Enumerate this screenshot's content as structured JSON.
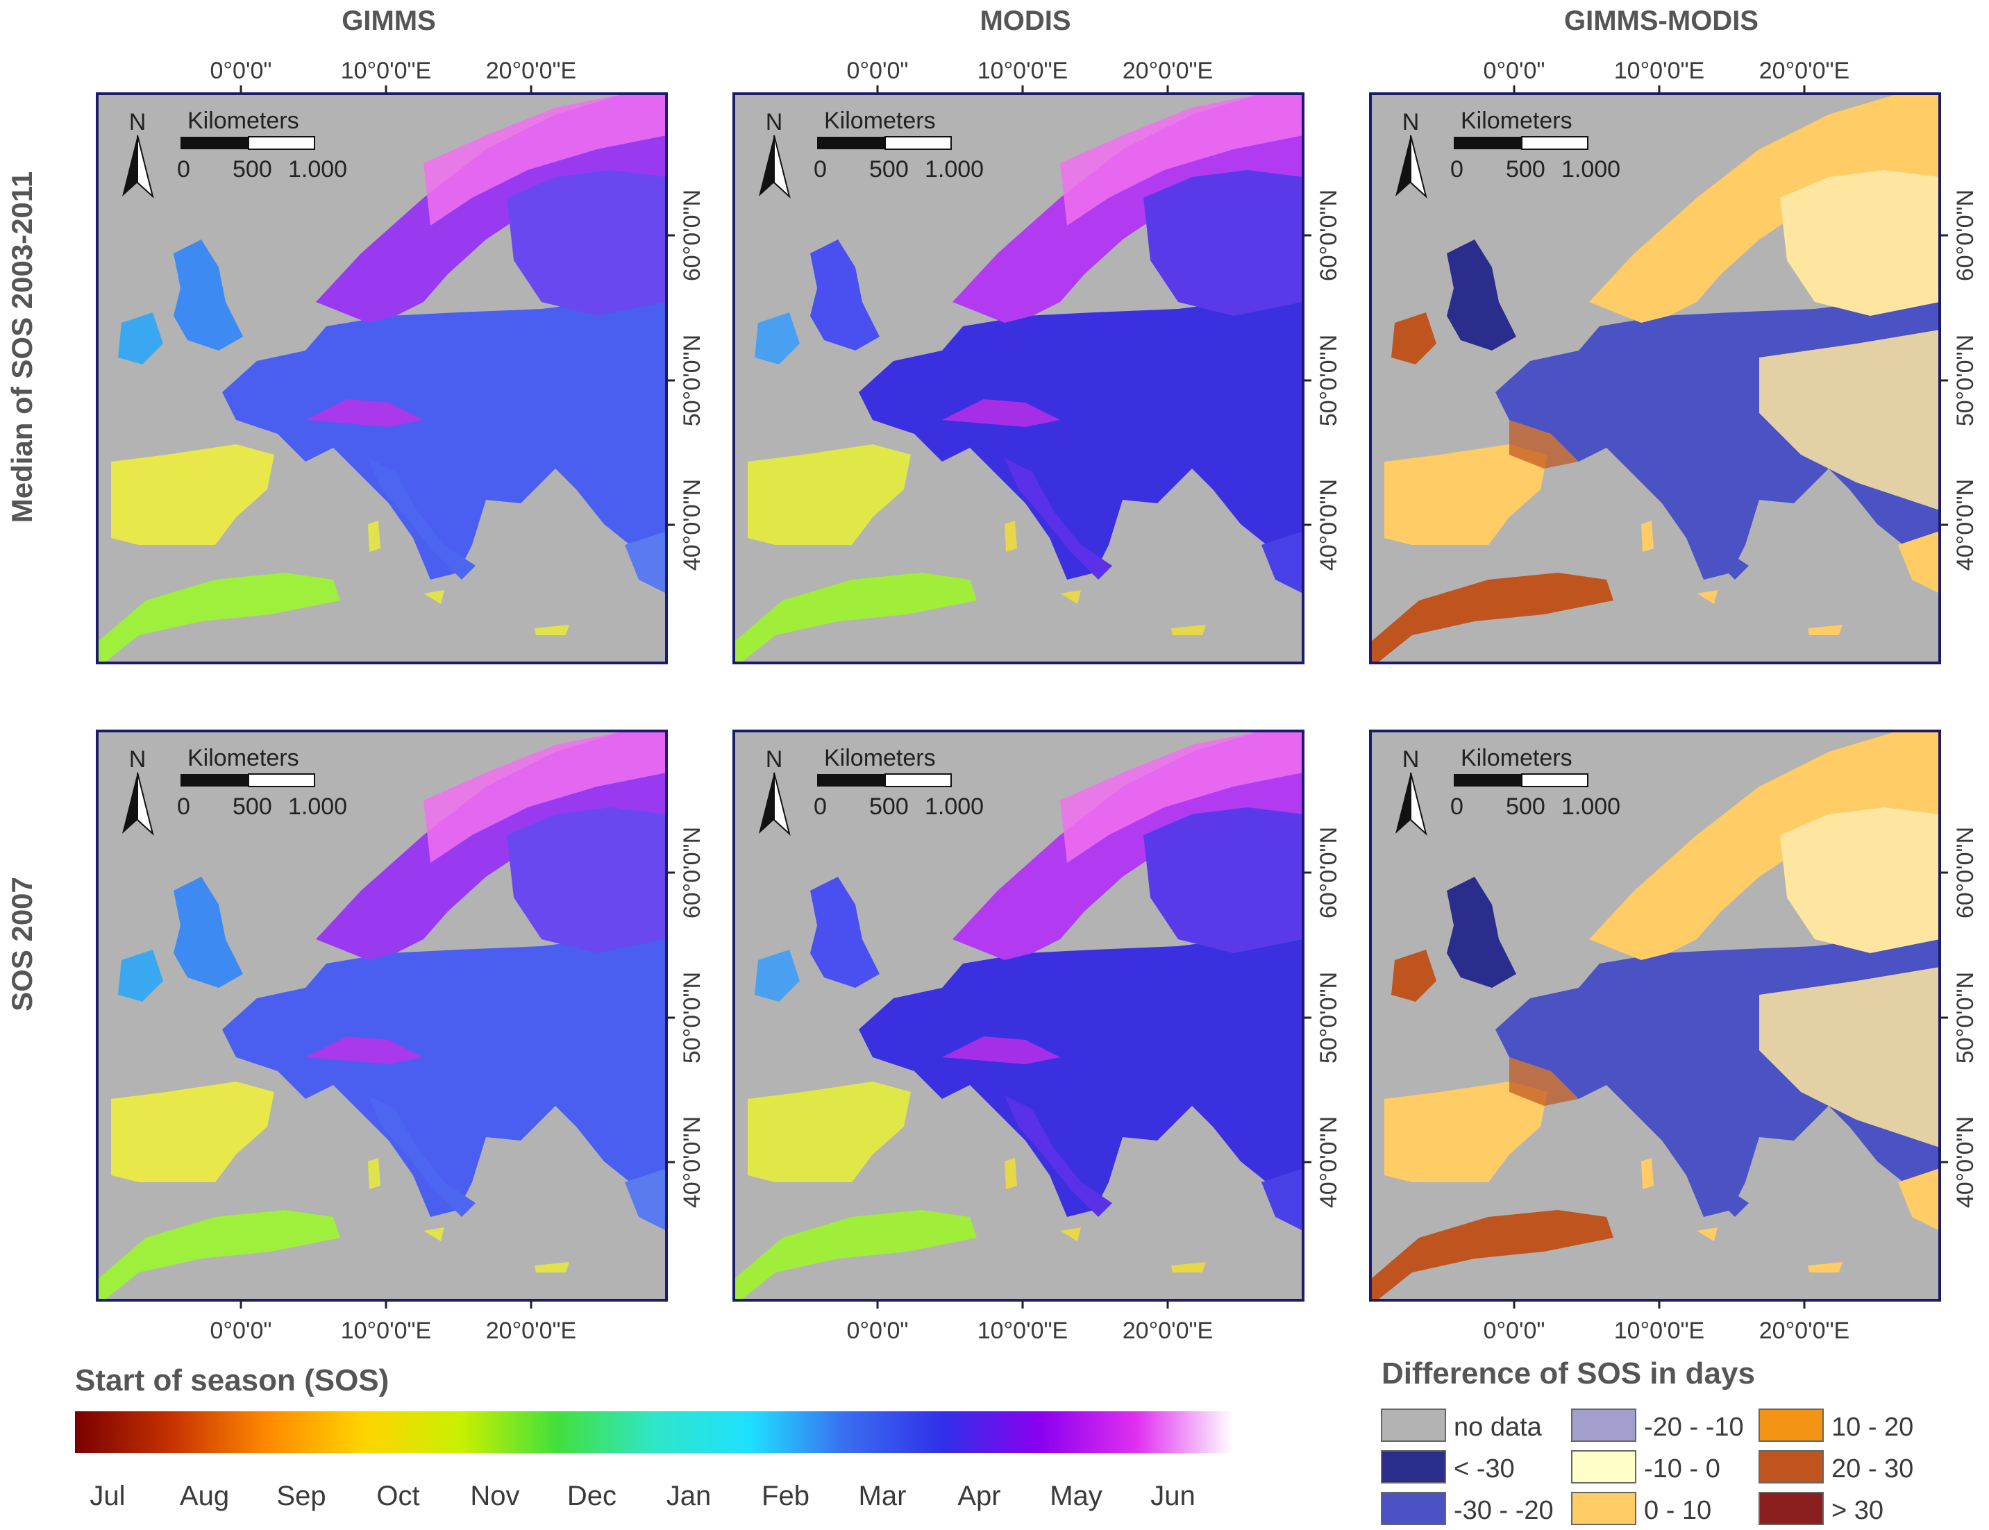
{
  "columns": [
    "GIMMS",
    "MODIS",
    "GIMMS-MODIS"
  ],
  "rows": [
    "Median of SOS 2003-2011",
    "SOS 2007"
  ],
  "longitude_ticks": [
    "0°0'0\"",
    "10°0'0\"E",
    "20°0'0\"E"
  ],
  "latitude_ticks": [
    "60°0'0\"N",
    "50°0'0\"N",
    "40°0'0\"N"
  ],
  "north_arrow": "N",
  "scale_bar": {
    "title": "Kilometers",
    "labels": [
      "0",
      "500",
      "1.000"
    ]
  },
  "sos_legend": {
    "title": "Start of season (SOS)",
    "months": [
      "Jul",
      "Aug",
      "Sep",
      "Oct",
      "Nov",
      "Dec",
      "Jan",
      "Feb",
      "Mar",
      "Apr",
      "May",
      "Jun"
    ],
    "gradient_colors": [
      "#7a0000",
      "#c63200",
      "#ff8a00",
      "#ffd400",
      "#c8f000",
      "#42e03c",
      "#2fe6c8",
      "#1ee0ff",
      "#3a6cf0",
      "#3030e8",
      "#8a00f0",
      "#e030f0",
      "#ffffff"
    ]
  },
  "diff_legend": {
    "title": "Difference of SOS in days",
    "items": [
      {
        "label": "no data",
        "color": "#b3b3b3"
      },
      {
        "label": "< -30",
        "color": "#2b2d8c"
      },
      {
        "label": "-30 - -20",
        "color": "#4a52c4"
      },
      {
        "label": "-20 - -10",
        "color": "#a29fcc"
      },
      {
        "label": "-10 - 0",
        "color": "#ffffc8"
      },
      {
        "label": "0 - 10",
        "color": "#ffcc66"
      },
      {
        "label": "10 - 20",
        "color": "#f39414"
      },
      {
        "label": "20 - 30",
        "color": "#c0541e"
      },
      {
        "label": "> 30",
        "color": "#8b1f1f"
      }
    ]
  },
  "colors": {
    "no_data": "#b3b3b3",
    "frame": "#1b1b6b"
  }
}
